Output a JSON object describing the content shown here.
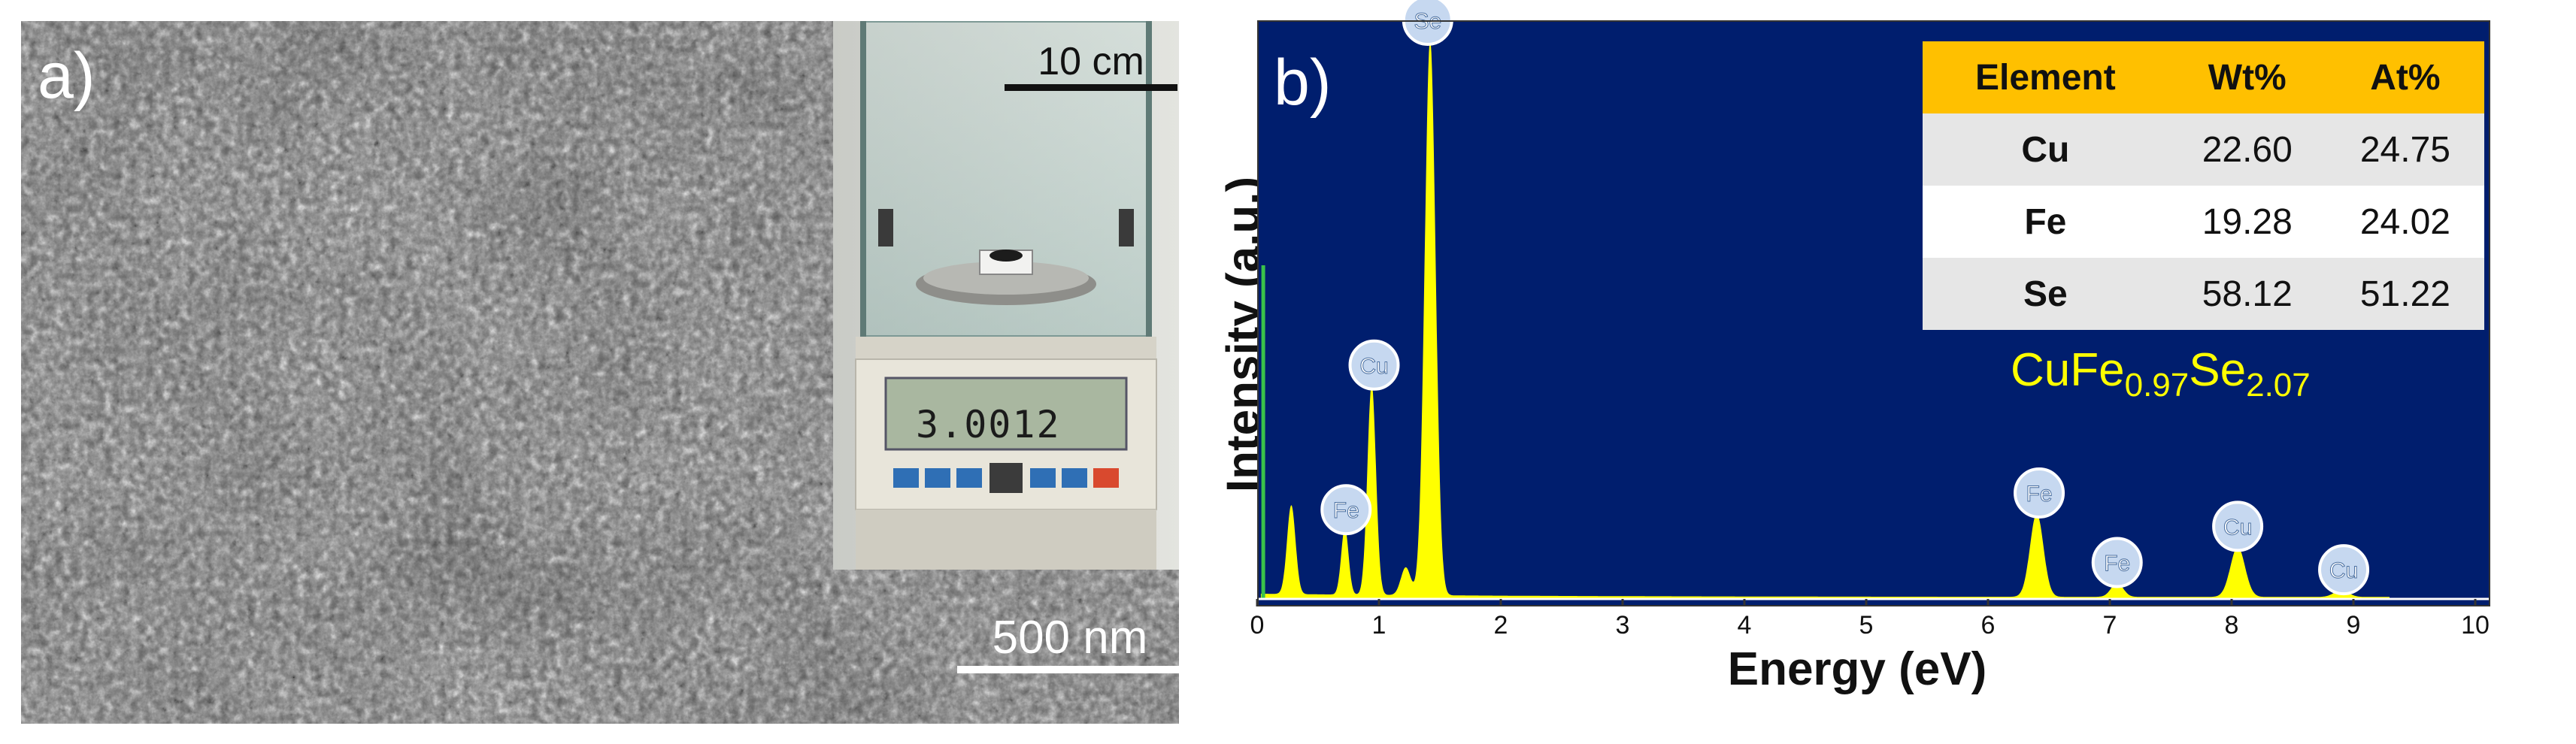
{
  "panel_a": {
    "label": "a)",
    "sem_scale_bar": "500 nm",
    "inset_scale_bar": "10 cm",
    "balance_reading": "3.0012"
  },
  "panel_b": {
    "label": "b)",
    "formula": {
      "base1": "CuFe",
      "sub1": "0.97",
      "base2": "Se",
      "sub2": "2.07"
    },
    "table": {
      "headers": [
        "Element",
        "Wt%",
        "At%"
      ],
      "rows": [
        [
          "Cu",
          "22.60",
          "24.75"
        ],
        [
          "Fe",
          "19.28",
          "24.02"
        ],
        [
          "Se",
          "58.12",
          "51.22"
        ]
      ]
    }
  },
  "chart_data": {
    "type": "area",
    "xlabel": "Energy (eV)",
    "ylabel": "Intensity (a.u.)",
    "xlim": [
      0,
      10
    ],
    "ylim": [
      0,
      100
    ],
    "x_ticks": [
      0,
      1,
      2,
      3,
      4,
      5,
      6,
      7,
      8,
      9,
      10
    ],
    "y_ticks_shown": false,
    "grid": false,
    "background_color": "#001e6e",
    "fill_color": "#ffff00",
    "green_line_x": 0.05,
    "peaks": [
      {
        "x": 0.28,
        "y": 16,
        "w": 0.035
      },
      {
        "x": 0.72,
        "y": 12,
        "w": 0.03
      },
      {
        "x": 0.94,
        "y": 38,
        "w": 0.035
      },
      {
        "x": 1.22,
        "y": 5,
        "w": 0.04
      },
      {
        "x": 1.42,
        "y": 100,
        "w": 0.045
      },
      {
        "x": 6.4,
        "y": 15,
        "w": 0.055
      },
      {
        "x": 7.06,
        "y": 2.5,
        "w": 0.05
      },
      {
        "x": 8.05,
        "y": 9,
        "w": 0.06
      },
      {
        "x": 8.9,
        "y": 1.2,
        "w": 0.06
      }
    ],
    "labels": [
      {
        "text": "Se",
        "x": 1.4,
        "y": 100
      },
      {
        "text": "Cu",
        "x": 0.96,
        "y": 38
      },
      {
        "text": "Fe",
        "x": 0.73,
        "y": 12
      },
      {
        "text": "Fe",
        "x": 6.42,
        "y": 15
      },
      {
        "text": "Fe",
        "x": 7.06,
        "y": 2.5
      },
      {
        "text": "Cu",
        "x": 8.05,
        "y": 9
      },
      {
        "text": "Cu",
        "x": 8.92,
        "y": 1.2
      }
    ]
  }
}
